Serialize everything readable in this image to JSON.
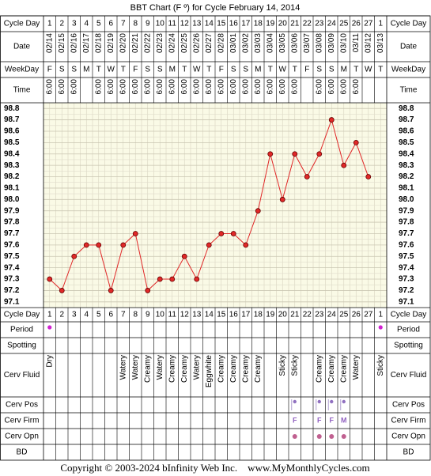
{
  "title": "BBT Chart (F º) for Cycle February 14, 2014",
  "labels": {
    "cycle_day": "Cycle Day",
    "date": "Date",
    "weekday": "WeekDay",
    "time": "Time",
    "period": "Period",
    "spotting": "Spotting",
    "cerv_fluid": "Cerv Fluid",
    "cerv_pos": "Cerv Pos",
    "cerv_firm": "Cerv Firm",
    "cerv_opn": "Cerv Opn",
    "bd": "BD"
  },
  "chart_data": {
    "type": "line",
    "categories": [
      1,
      2,
      3,
      4,
      5,
      6,
      7,
      8,
      9,
      10,
      11,
      12,
      13,
      14,
      15,
      16,
      17,
      18,
      19,
      20,
      21,
      22,
      23,
      24,
      25,
      26,
      27,
      1
    ],
    "dates": [
      "02/14",
      "02/15",
      "02/16",
      "02/17",
      "02/18",
      "02/19",
      "02/20",
      "02/21",
      "02/22",
      "02/23",
      "02/24",
      "02/25",
      "02/26",
      "02/27",
      "02/28",
      "03/01",
      "03/02",
      "03/03",
      "03/04",
      "03/05",
      "03/06",
      "03/07",
      "03/08",
      "03/09",
      "03/10",
      "03/11",
      "03/12",
      "03/13"
    ],
    "weekdays": [
      "F",
      "S",
      "S",
      "M",
      "T",
      "W",
      "T",
      "F",
      "S",
      "S",
      "M",
      "T",
      "W",
      "T",
      "F",
      "S",
      "S",
      "M",
      "T",
      "W",
      "T",
      "F",
      "S",
      "S",
      "M",
      "T",
      "W",
      "T"
    ],
    "times": [
      "6:00",
      "6:00",
      "6:00",
      null,
      "6:00",
      "6:00",
      "6:00",
      "6:00",
      "6:00",
      "6:00",
      "6:00",
      "6:00",
      "6:00",
      "6:00",
      "6:00",
      "6:00",
      "6:00",
      "6:00",
      "6:00",
      "6:00",
      "6:00",
      null,
      "6:00",
      "6:00",
      "6:00",
      "6:00",
      null,
      null
    ],
    "series": [
      {
        "color": "#e02828",
        "values": [
          97.3,
          97.2,
          97.5,
          97.6,
          97.6,
          97.2,
          97.6,
          97.7,
          97.2,
          97.3,
          97.3,
          97.5,
          97.3,
          97.6,
          97.7,
          97.7,
          97.6,
          97.9,
          98.4,
          98.0,
          98.4,
          98.2,
          98.4,
          98.7,
          98.3,
          98.5,
          98.2,
          null
        ]
      }
    ],
    "ylim": [
      97.05,
      98.85
    ],
    "yticks": [
      98.8,
      98.7,
      98.6,
      98.5,
      98.4,
      98.3,
      98.2,
      98.1,
      {
        "value": 98,
        "label": "98.0"
      },
      97.9,
      97.8,
      97.7,
      97.6,
      97.5,
      97.4,
      97.3,
      97.2,
      97.1
    ],
    "grid": true
  },
  "period": [
    true,
    false,
    false,
    false,
    false,
    false,
    false,
    false,
    false,
    false,
    false,
    false,
    false,
    false,
    false,
    false,
    false,
    false,
    false,
    false,
    false,
    false,
    false,
    false,
    false,
    false,
    false,
    true
  ],
  "cerv_fluid": [
    "Dry",
    null,
    null,
    null,
    null,
    null,
    "Watery",
    "Watery",
    "Creamy",
    "Watery",
    "Creamy",
    "Creamy",
    "Watery",
    "Eggwhite",
    "Creamy",
    "Creamy",
    "Creamy",
    "Creamy",
    null,
    "Sticky",
    "Sticky",
    null,
    "Creamy",
    "Creamy",
    "Creamy",
    "Watery",
    null,
    "Sticky"
  ],
  "cerv_pos": [
    false,
    false,
    false,
    false,
    false,
    false,
    false,
    false,
    false,
    false,
    false,
    false,
    false,
    false,
    false,
    false,
    false,
    false,
    false,
    false,
    true,
    false,
    true,
    true,
    true,
    false,
    false,
    false
  ],
  "cerv_firm": [
    null,
    null,
    null,
    null,
    null,
    null,
    null,
    null,
    null,
    null,
    null,
    null,
    null,
    null,
    null,
    null,
    null,
    null,
    null,
    null,
    "F",
    null,
    "F",
    "F",
    "M",
    null,
    null,
    null
  ],
  "cerv_opn": [
    false,
    false,
    false,
    false,
    false,
    false,
    false,
    false,
    false,
    false,
    false,
    false,
    false,
    false,
    false,
    false,
    false,
    false,
    false,
    false,
    true,
    false,
    true,
    true,
    true,
    false,
    false,
    false
  ],
  "copyright": "Copyright © 2003-2024 bInfinity Web Inc.    www.MyMonthlyCycles.com"
}
